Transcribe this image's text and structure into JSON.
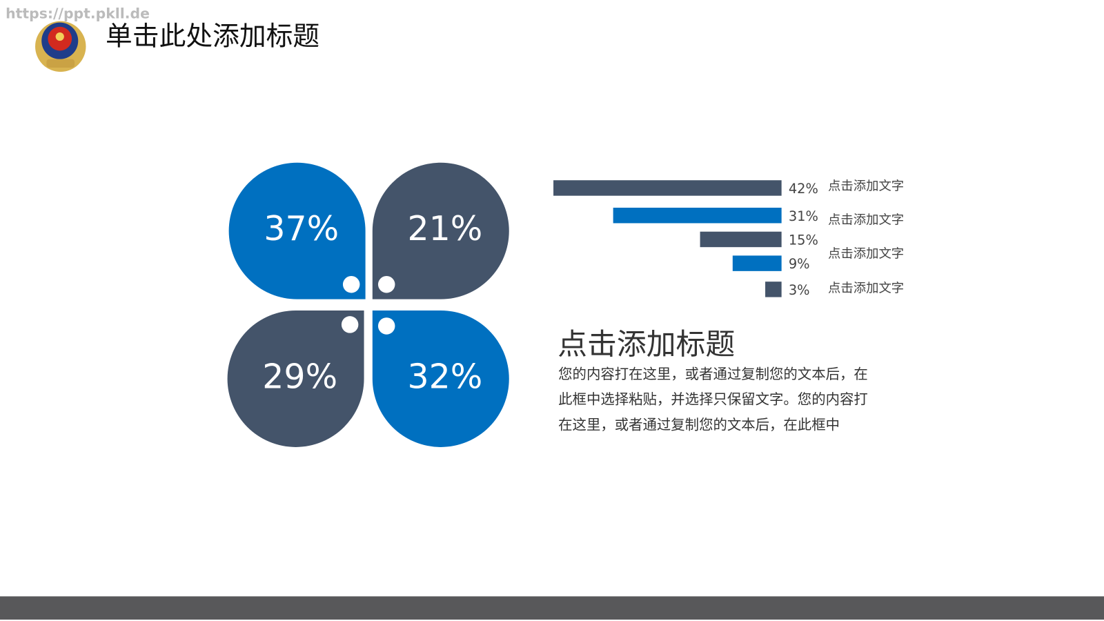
{
  "watermark": "https://ppt.pkll.de",
  "header": {
    "title": "单击此处添加标题"
  },
  "petals": [
    "37%",
    "21%",
    "29%",
    "32%"
  ],
  "chart_data": {
    "type": "bar",
    "orientation": "horizontal",
    "values": [
      42,
      31,
      15,
      9,
      3
    ],
    "value_labels": [
      "42%",
      "31%",
      "15%",
      "9%",
      "3%"
    ],
    "colors": [
      "#44546a",
      "#0070c0",
      "#44546a",
      "#0070c0",
      "#44546a"
    ]
  },
  "side_labels": [
    "点击添加文字",
    "点击添加文字",
    "点击添加文字",
    "点击添加文字"
  ],
  "body": {
    "title": "点击添加标题",
    "lines": [
      "您的内容打在这里，或者通过复制您的文本后，在",
      "此框中选择粘贴，并选择只保留文字。您的内容打",
      "在这里，或者通过复制您的文本后，在此框中"
    ]
  }
}
